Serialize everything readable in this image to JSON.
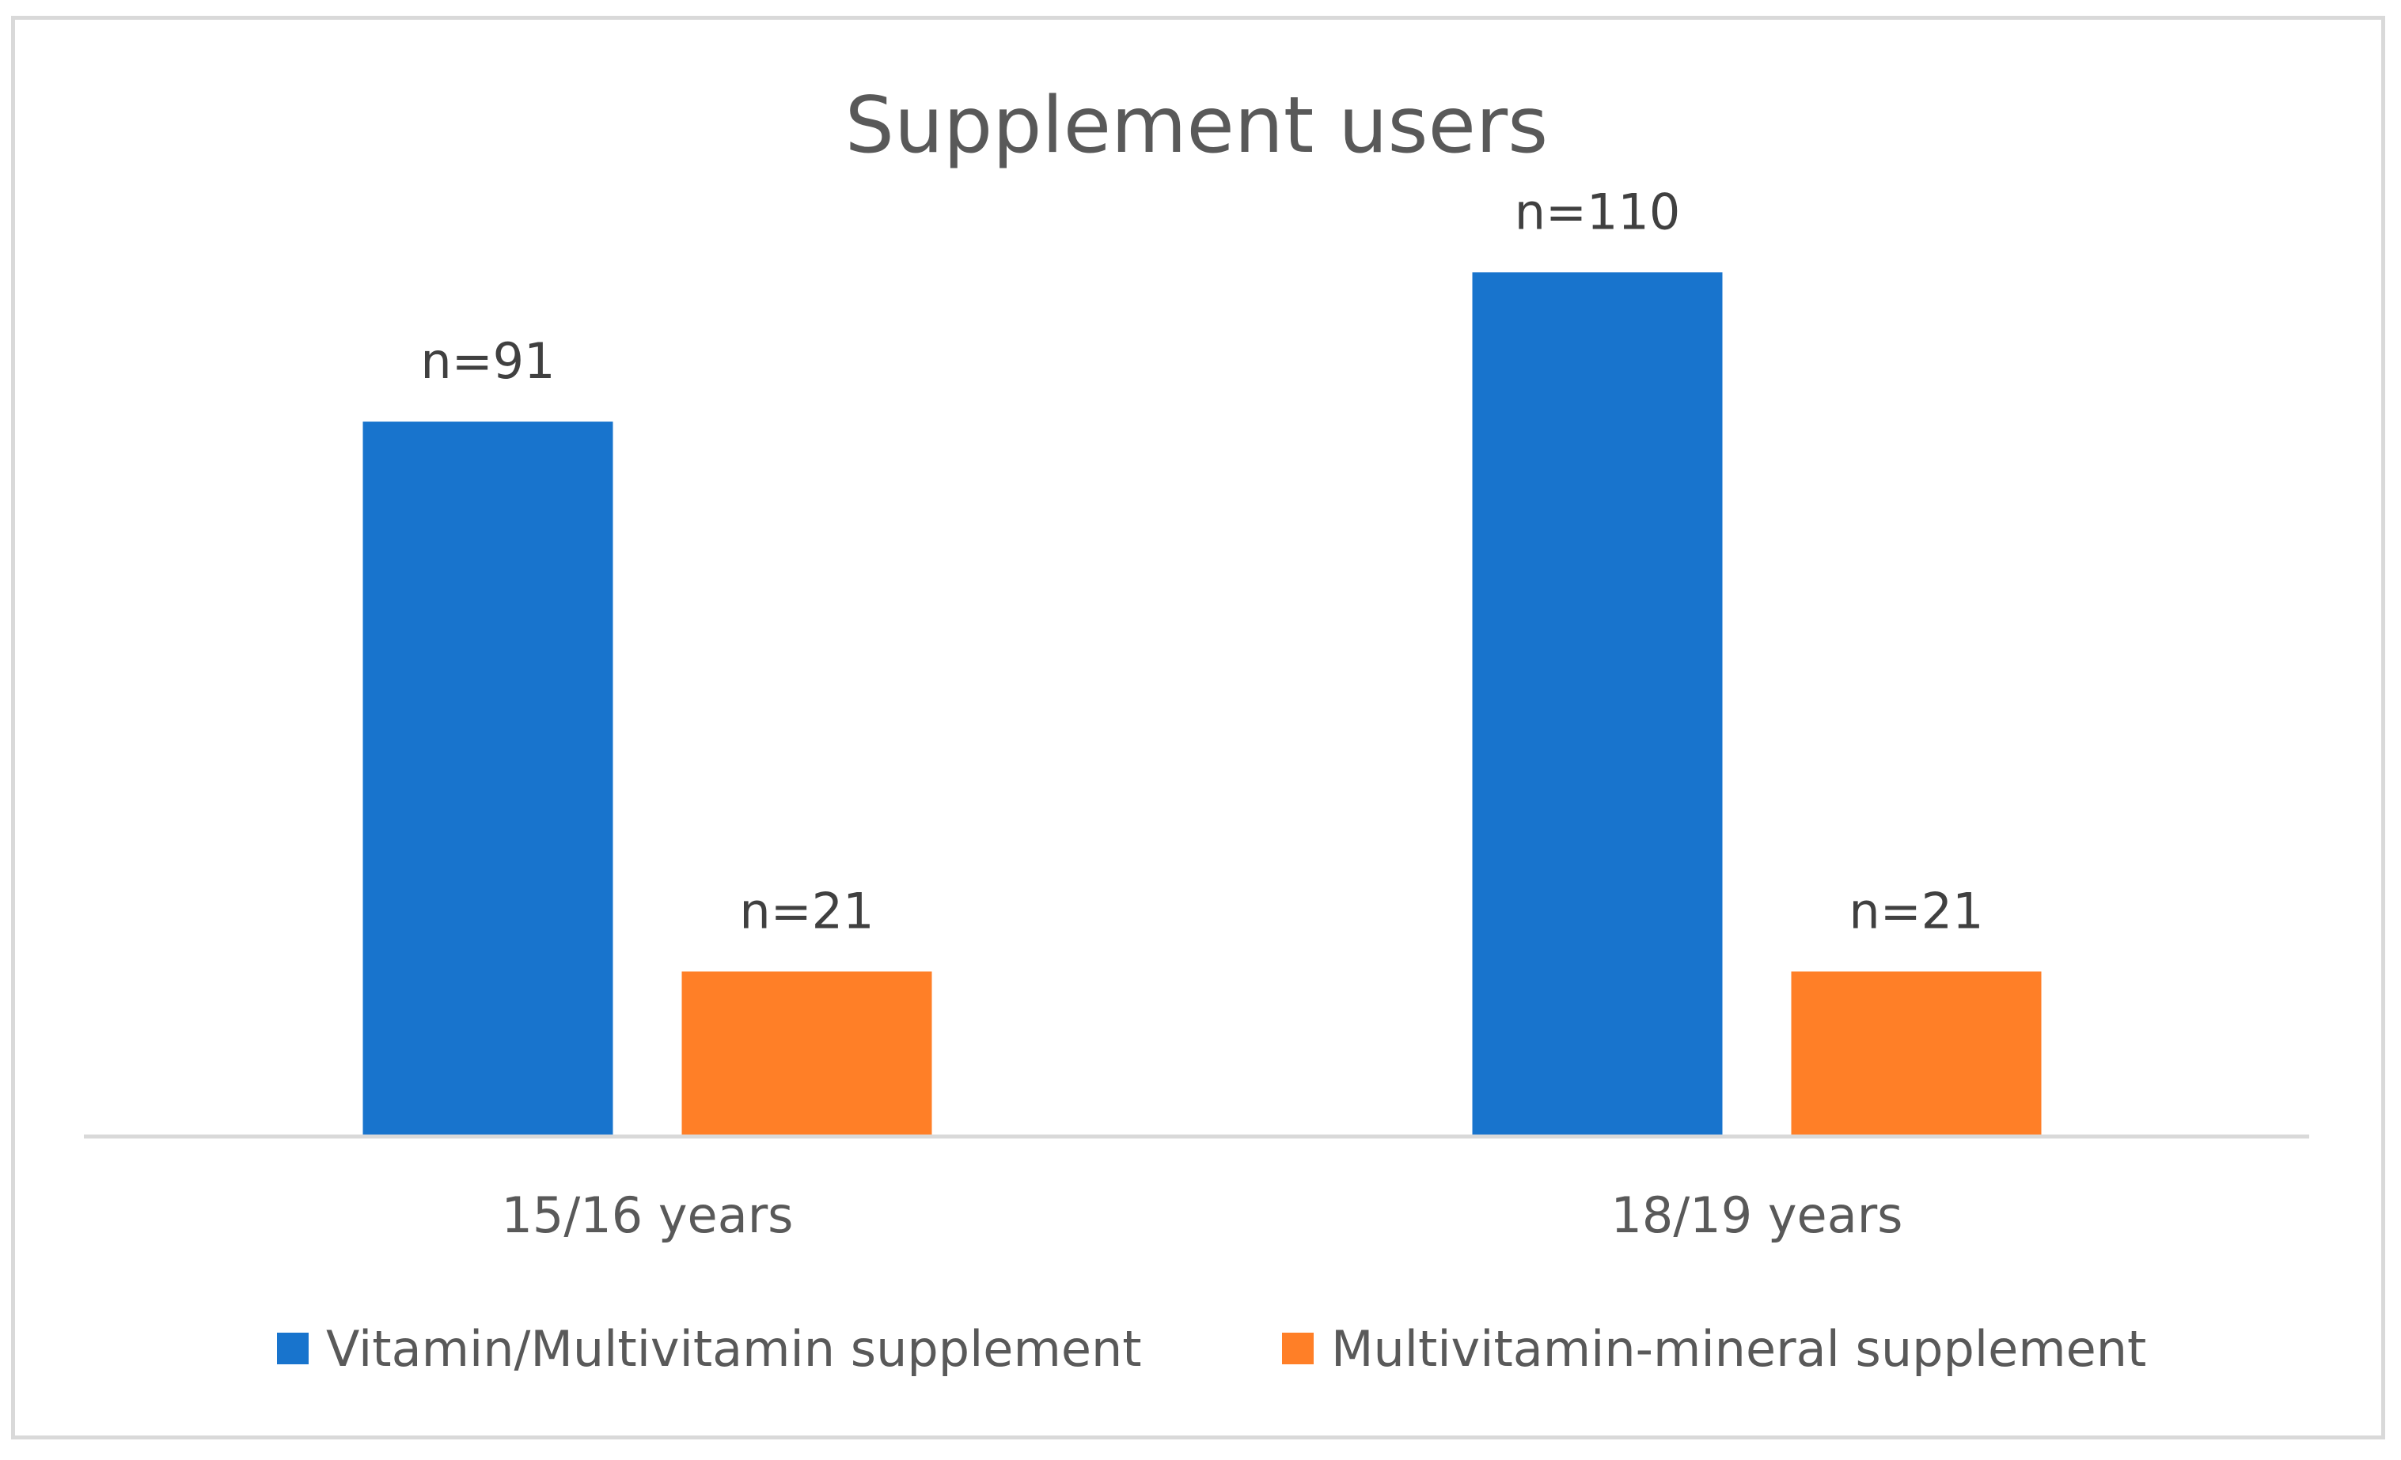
{
  "chart_data": {
    "type": "bar",
    "title": "Supplement users",
    "categories": [
      "15/16 years",
      "18/19 years"
    ],
    "series": [
      {
        "name": "Vitamin/Multivitamin supplement",
        "color": "#1874CD",
        "values": [
          91,
          110
        ],
        "labels": [
          "n=91",
          "n=110"
        ]
      },
      {
        "name": "Multivitamin-mineral supplement",
        "color": "#FF7F27",
        "values": [
          21,
          21
        ],
        "labels": [
          "n=21",
          "n=21"
        ]
      }
    ],
    "xlabel": "",
    "ylabel": "",
    "ylim": [
      0,
      120
    ],
    "grid": false,
    "legend_position": "bottom",
    "value_axis_visible": false
  }
}
